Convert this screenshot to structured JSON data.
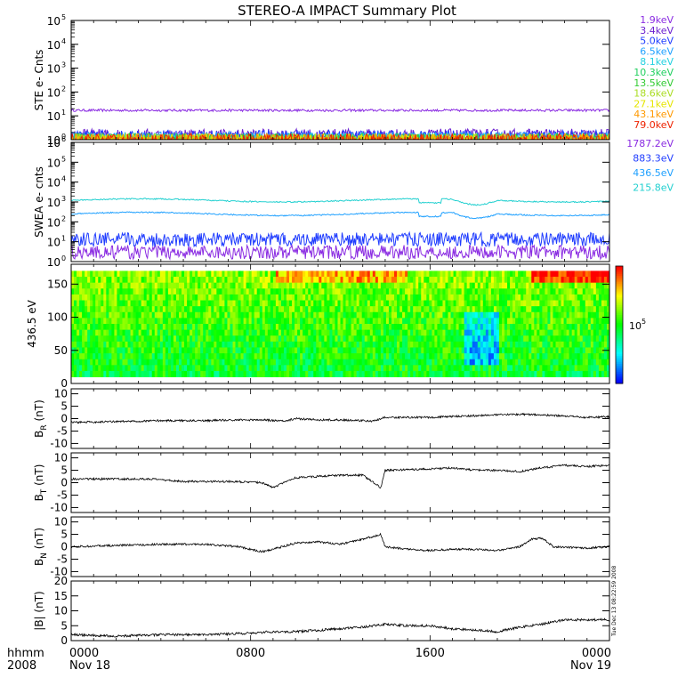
{
  "title": "STEREO-A IMPACT Summary Plot",
  "timestamp": "Tue Dec 13 08:22:59 2008",
  "x_axis": {
    "row1_label": "hhmm",
    "row2_label": "2008",
    "ticks": [
      "0000",
      "0800",
      "1600",
      "0000"
    ],
    "dates": [
      "Nov 18",
      "",
      "",
      "Nov 19"
    ]
  },
  "colorbar": {
    "label": "10",
    "exponent": "5"
  },
  "chart_data": [
    {
      "type": "line",
      "id": "ste",
      "ylabel": "STE e- Cnts",
      "yscale": "log",
      "ylim": [
        1,
        100000
      ],
      "yticks": [
        {
          "b": "10",
          "e": "0"
        },
        {
          "b": "10",
          "e": "1"
        },
        {
          "b": "10",
          "e": "2"
        },
        {
          "b": "10",
          "e": "3"
        },
        {
          "b": "10",
          "e": "4"
        },
        {
          "b": "10",
          "e": "5"
        }
      ],
      "series": [
        {
          "name": "1.9keV",
          "color": "#8a2be2",
          "level": 17
        },
        {
          "name": "3.4keV",
          "color": "#6a1fd0",
          "level": 1.6
        },
        {
          "name": "5.0keV",
          "color": "#1f3cff",
          "level": 1.4
        },
        {
          "name": "6.5keV",
          "color": "#1ea0ff",
          "level": 1.2
        },
        {
          "name": "8.1keV",
          "color": "#22d0e0",
          "level": 1.1
        },
        {
          "name": "10.3keV",
          "color": "#22d060",
          "level": 1.05
        },
        {
          "name": "13.5keV",
          "color": "#33cc33",
          "level": 1.02
        },
        {
          "name": "18.6keV",
          "color": "#aadd22",
          "level": 1.01
        },
        {
          "name": "27.1keV",
          "color": "#e6e600",
          "level": 1.0
        },
        {
          "name": "43.1keV",
          "color": "#ff9900",
          "level": 1.0
        },
        {
          "name": "79.0keV",
          "color": "#ee2200",
          "level": 1.0
        }
      ]
    },
    {
      "type": "line",
      "id": "swea",
      "ylabel": "SWEA e- cnts",
      "yscale": "log",
      "ylim": [
        1,
        1000000
      ],
      "yticks": [
        {
          "b": "10",
          "e": "0"
        },
        {
          "b": "10",
          "e": "1"
        },
        {
          "b": "10",
          "e": "2"
        },
        {
          "b": "10",
          "e": "3"
        },
        {
          "b": "10",
          "e": "4"
        },
        {
          "b": "10",
          "e": "5"
        },
        {
          "b": "10",
          "e": "6"
        }
      ],
      "series": [
        {
          "name": "1787.2eV",
          "color": "#8a2be2",
          "level": 3
        },
        {
          "name": "883.3eV",
          "color": "#1f3cff",
          "level": 13
        },
        {
          "name": "436.5eV",
          "color": "#1ea0ff",
          "level": 250
        },
        {
          "name": "215.8eV",
          "color": "#22d0d0",
          "level": 1200
        }
      ]
    },
    {
      "type": "heatmap",
      "id": "pad",
      "ylabel": "436.5 eV",
      "ylim": [
        0,
        180
      ],
      "yticks": [
        "0",
        "50",
        "100",
        "150"
      ]
    },
    {
      "type": "line",
      "id": "br",
      "ylabel": "B",
      "ylabel_sub": "R",
      "ylabel_unit": "(nT)",
      "ylim": [
        -12,
        12
      ],
      "yticks": [
        "-10",
        "-5",
        "0",
        "5",
        "10"
      ],
      "anchors": [
        [
          0,
          -1.5
        ],
        [
          2,
          -1.2
        ],
        [
          4,
          -0.8
        ],
        [
          6,
          -0.8
        ],
        [
          7.5,
          -0.5
        ],
        [
          8.5,
          -0.5
        ],
        [
          9.5,
          -1
        ],
        [
          10,
          0
        ],
        [
          11,
          -0.5
        ],
        [
          12,
          -0.5
        ],
        [
          13.5,
          -1
        ],
        [
          14,
          0.5
        ],
        [
          16,
          0.5
        ],
        [
          18,
          1.2
        ],
        [
          20,
          1.8
        ],
        [
          21,
          1.5
        ],
        [
          22,
          1
        ],
        [
          23,
          0.5
        ],
        [
          24,
          0.8
        ]
      ]
    },
    {
      "type": "line",
      "id": "bt",
      "ylabel": "B",
      "ylabel_sub": "T",
      "ylabel_unit": "(nT)",
      "ylim": [
        -12,
        12
      ],
      "yticks": [
        "-10",
        "-5",
        "0",
        "5",
        "10"
      ],
      "anchors": [
        [
          0,
          1.5
        ],
        [
          2,
          1.5
        ],
        [
          3.5,
          1.5
        ],
        [
          5,
          0.5
        ],
        [
          7,
          0.5
        ],
        [
          8.5,
          0
        ],
        [
          9,
          -2
        ],
        [
          10,
          2
        ],
        [
          11,
          2.5
        ],
        [
          12,
          3
        ],
        [
          13,
          3
        ],
        [
          13.8,
          -2
        ],
        [
          14,
          5
        ],
        [
          16,
          5.5
        ],
        [
          17,
          6
        ],
        [
          18,
          5
        ],
        [
          19,
          5
        ],
        [
          20,
          4.5
        ],
        [
          21,
          6
        ],
        [
          22,
          7
        ],
        [
          23,
          6.5
        ],
        [
          24,
          7
        ]
      ]
    },
    {
      "type": "line",
      "id": "bn",
      "ylabel": "B",
      "ylabel_sub": "N",
      "ylabel_unit": "(nT)",
      "ylim": [
        -12,
        12
      ],
      "yticks": [
        "-10",
        "-5",
        "0",
        "5",
        "10"
      ],
      "anchors": [
        [
          0,
          0
        ],
        [
          2,
          0.5
        ],
        [
          4,
          1
        ],
        [
          6,
          1
        ],
        [
          7.5,
          0
        ],
        [
          8.5,
          -2
        ],
        [
          9,
          -1
        ],
        [
          10,
          1.5
        ],
        [
          11,
          2
        ],
        [
          12,
          1
        ],
        [
          13,
          3
        ],
        [
          13.8,
          5
        ],
        [
          14,
          0
        ],
        [
          15,
          -1
        ],
        [
          16,
          -1.5
        ],
        [
          17,
          -1
        ],
        [
          18,
          -1
        ],
        [
          19,
          -1.5
        ],
        [
          20,
          0
        ],
        [
          20.5,
          3
        ],
        [
          21,
          3.5
        ],
        [
          21.5,
          0
        ],
        [
          23,
          -0.5
        ],
        [
          24,
          0
        ]
      ]
    },
    {
      "type": "line",
      "id": "bmag",
      "ylabel": "|B|",
      "ylabel_unit": "(nT)",
      "ylim": [
        0,
        20
      ],
      "yticks": [
        "0",
        "5",
        "10",
        "15",
        "20"
      ],
      "anchors": [
        [
          0,
          2
        ],
        [
          2,
          1.5
        ],
        [
          4,
          2
        ],
        [
          6,
          2
        ],
        [
          8,
          2.5
        ],
        [
          9,
          3
        ],
        [
          10,
          3
        ],
        [
          12,
          4
        ],
        [
          13,
          4.5
        ],
        [
          14,
          5.5
        ],
        [
          15,
          5
        ],
        [
          16,
          5
        ],
        [
          17,
          4
        ],
        [
          18,
          3.5
        ],
        [
          19,
          3
        ],
        [
          20,
          4.5
        ],
        [
          21,
          5.5
        ],
        [
          22,
          7
        ],
        [
          24,
          7
        ]
      ]
    }
  ]
}
